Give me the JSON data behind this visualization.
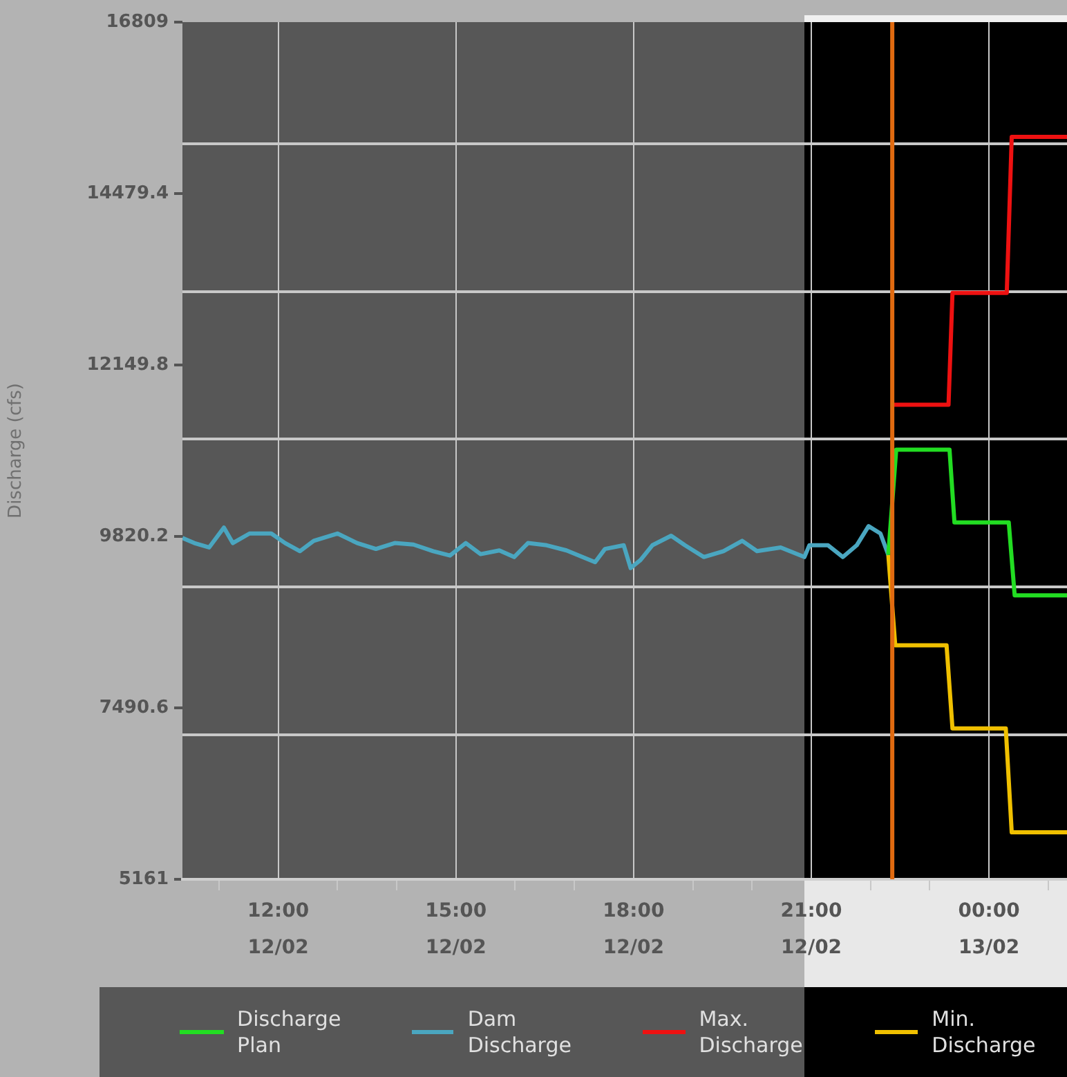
{
  "chart_data": {
    "type": "line",
    "ylabel": "Discharge (cfs)",
    "xlim": [
      "--02-12T10:23",
      "--02-13T01:19"
    ],
    "xticks": [
      {
        "value": "--02-12T11:00",
        "label": null
      },
      {
        "value": "--02-12T12:00",
        "label": "12:00\n12/02"
      },
      {
        "value": "--02-12T13:00",
        "label": null
      },
      {
        "value": "--02-12T14:00",
        "label": null
      },
      {
        "value": "--02-12T15:00",
        "label": "15:00\n12/02"
      },
      {
        "value": "--02-12T16:00",
        "label": null
      },
      {
        "value": "--02-12T17:00",
        "label": null
      },
      {
        "value": "--02-12T18:00",
        "label": "18:00\n12/02"
      },
      {
        "value": "--02-12T19:00",
        "label": null
      },
      {
        "value": "--02-12T20:00",
        "label": null
      },
      {
        "value": "--02-12T21:00",
        "label": "21:00\n12/02"
      },
      {
        "value": "--02-12T22:00",
        "label": null
      },
      {
        "value": "--02-12T23:00",
        "label": null
      },
      {
        "value": "--02-13T00:00",
        "label": "00:00\n13/02"
      },
      {
        "value": "--02-13T01:00",
        "label": null
      }
    ],
    "ylim": [
      5161,
      16809
    ],
    "yticks": [
      5161,
      {
        "value": 7120,
        "label": null
      },
      7490.6,
      {
        "value": 9130,
        "label": null
      },
      9820.2,
      {
        "value": 11140,
        "label": null
      },
      12149.8,
      {
        "value": 13150,
        "label": null
      },
      14479.4,
      {
        "value": 15160,
        "label": null
      },
      16809
    ],
    "grid": true,
    "legend": "bottom",
    "marker": "none",
    "line_style": "solid",
    "bands": [
      {
        "axis": "x",
        "from": "--02-12T20:53",
        "to": "--02-13T01:19",
        "color": "#000000"
      }
    ],
    "ref_lines": [
      {
        "axis": "x",
        "value": "--02-12T22:22",
        "color": "#e06a10"
      }
    ],
    "series": [
      {
        "name": "Discharge Plan",
        "color": "#22dd22",
        "x": [
          "--02-12T22:18",
          "--02-12T22:26",
          "--02-12T23:20",
          "--02-12T23:25",
          "--02-13T00:20",
          "--02-13T00:26",
          "--02-13T01:19"
        ],
        "values": [
          9570,
          11000,
          11000,
          10010,
          10010,
          9020,
          9020
        ]
      },
      {
        "name": "Dam Discharge",
        "color": "#4aa6c0",
        "x": [
          "--02-12T10:23",
          "--02-12T10:35",
          "--02-12T10:50",
          "--02-12T11:05",
          "--02-12T11:14",
          "--02-12T11:31",
          "--02-12T11:53",
          "--02-12T12:07",
          "--02-12T12:22",
          "--02-12T12:36",
          "--02-12T13:00",
          "--02-12T13:20",
          "--02-12T13:39",
          "--02-12T13:58",
          "--02-12T14:17",
          "--02-12T14:37",
          "--02-12T14:54",
          "--02-12T15:10",
          "--02-12T15:25",
          "--02-12T15:44",
          "--02-12T15:59",
          "--02-12T16:13",
          "--02-12T16:32",
          "--02-12T16:52",
          "--02-12T17:21",
          "--02-12T17:31",
          "--02-12T17:50",
          "--02-12T17:57",
          "--02-12T18:07",
          "--02-12T18:19",
          "--02-12T18:38",
          "--02-12T18:52",
          "--02-12T19:11",
          "--02-12T19:31",
          "--02-12T19:50",
          "--02-12T20:05",
          "--02-12T20:29",
          "--02-12T20:53",
          "--02-12T20:58",
          "--02-12T21:17",
          "--02-12T21:32",
          "--02-12T21:46",
          "--02-12T21:58",
          "--02-12T22:10",
          "--02-12T22:18"
        ],
        "values": [
          9800,
          9730,
          9670,
          9940,
          9730,
          9860,
          9860,
          9730,
          9620,
          9760,
          9860,
          9730,
          9650,
          9730,
          9710,
          9620,
          9560,
          9730,
          9580,
          9630,
          9540,
          9730,
          9700,
          9630,
          9470,
          9650,
          9700,
          9390,
          9500,
          9700,
          9830,
          9700,
          9540,
          9620,
          9760,
          9620,
          9670,
          9540,
          9700,
          9700,
          9540,
          9700,
          9960,
          9860,
          9570
        ]
      },
      {
        "name": "Max. Discharge",
        "color": "#ee1111",
        "x": [
          "--02-12T22:22",
          "--02-12T23:19",
          "--02-12T23:23",
          "--02-13T00:18",
          "--02-13T00:23",
          "--02-13T01:19"
        ],
        "values": [
          11610,
          11610,
          13130,
          13130,
          15250,
          15250
        ]
      },
      {
        "name": "Min. Discharge",
        "color": "#f0c000",
        "x": [
          "--02-12T22:18",
          "--02-12T22:25",
          "--02-12T23:17",
          "--02-12T23:23",
          "--02-13T00:17",
          "--02-13T00:23",
          "--02-13T01:19"
        ],
        "values": [
          9570,
          8340,
          8340,
          7210,
          7210,
          5800,
          5800
        ]
      }
    ]
  }
}
